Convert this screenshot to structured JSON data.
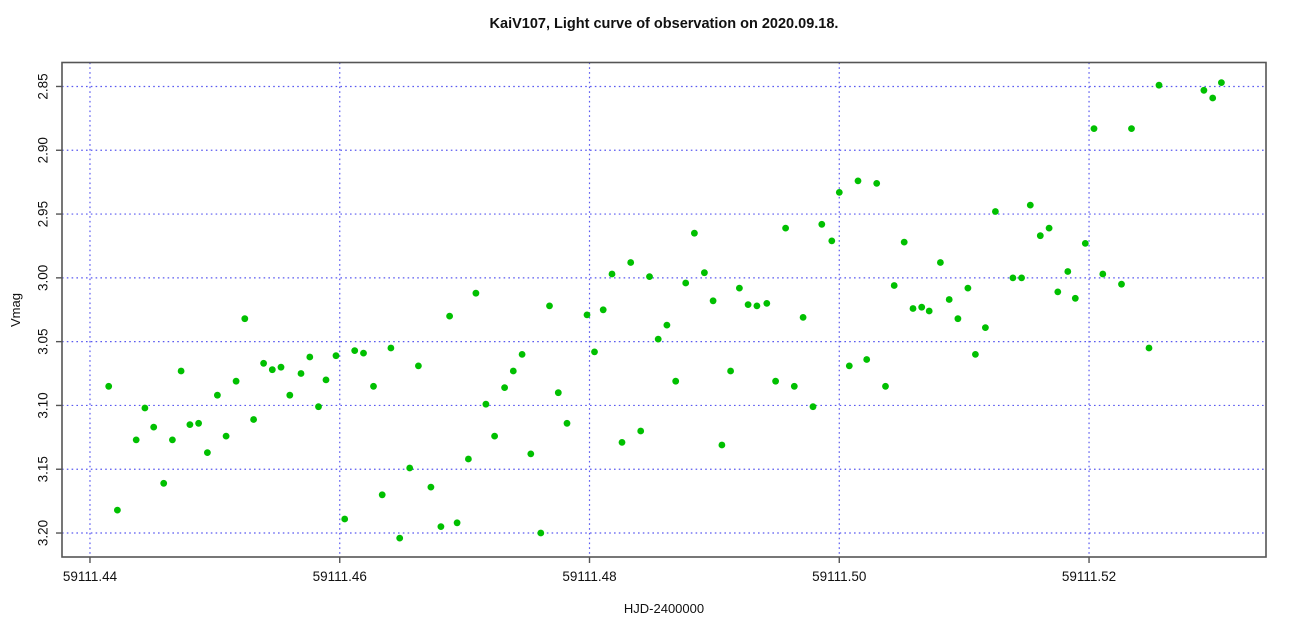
{
  "chart_data": {
    "type": "scatter",
    "title": "KaiV107, Light curve of observation on 2020.09.18.",
    "xlabel": "HJD-2400000",
    "ylabel": "Vmag",
    "x_ticks": [
      59111.44,
      59111.46,
      59111.48,
      59111.5,
      59111.52
    ],
    "x_tick_labels": [
      "59111.44",
      "59111.46",
      "59111.48",
      "59111.50",
      "59111.52"
    ],
    "y_ticks": [
      2.85,
      2.9,
      2.95,
      3.0,
      3.05,
      3.1,
      3.15,
      3.2
    ],
    "y_tick_labels": [
      "2.85",
      "2.90",
      "2.95",
      "3.00",
      "3.05",
      "3.10",
      "3.15",
      "3.20"
    ],
    "xlim": [
      59111.43776,
      59111.53417
    ],
    "ylim_top_to_bottom": [
      2.83121,
      3.21879
    ],
    "y_axis_inverted": true,
    "grid": {
      "show": true,
      "color": "#5a5af0",
      "style": "dotted"
    },
    "frame_color": "#555555",
    "text_color": "#111111",
    "legend": "none",
    "series": [
      {
        "name": "Vmag",
        "marker": "filled-circle",
        "color": "#00c000",
        "marker_radius": 3.4,
        "points": [
          [
            59111.4415,
            3.085
          ],
          [
            59111.4422,
            3.182
          ],
          [
            59111.4437,
            3.127
          ],
          [
            59111.4444,
            3.102
          ],
          [
            59111.4451,
            3.117
          ],
          [
            59111.4459,
            3.161
          ],
          [
            59111.4466,
            3.127
          ],
          [
            59111.4473,
            3.073
          ],
          [
            59111.448,
            3.115
          ],
          [
            59111.4487,
            3.114
          ],
          [
            59111.4494,
            3.137
          ],
          [
            59111.4502,
            3.092
          ],
          [
            59111.4509,
            3.124
          ],
          [
            59111.4517,
            3.081
          ],
          [
            59111.4524,
            3.032
          ],
          [
            59111.4531,
            3.111
          ],
          [
            59111.4539,
            3.067
          ],
          [
            59111.4546,
            3.072
          ],
          [
            59111.4553,
            3.07
          ],
          [
            59111.456,
            3.092
          ],
          [
            59111.4569,
            3.075
          ],
          [
            59111.4576,
            3.062
          ],
          [
            59111.4583,
            3.101
          ],
          [
            59111.4589,
            3.08
          ],
          [
            59111.4597,
            3.061
          ],
          [
            59111.4604,
            3.189
          ],
          [
            59111.4612,
            3.057
          ],
          [
            59111.4619,
            3.059
          ],
          [
            59111.4627,
            3.085
          ],
          [
            59111.4634,
            3.17
          ],
          [
            59111.4641,
            3.055
          ],
          [
            59111.4648,
            3.204
          ],
          [
            59111.4656,
            3.149
          ],
          [
            59111.4663,
            3.069
          ],
          [
            59111.4673,
            3.164
          ],
          [
            59111.4681,
            3.195
          ],
          [
            59111.4688,
            3.03
          ],
          [
            59111.4694,
            3.192
          ],
          [
            59111.4703,
            3.142
          ],
          [
            59111.4709,
            3.012
          ],
          [
            59111.4717,
            3.099
          ],
          [
            59111.4724,
            3.124
          ],
          [
            59111.4732,
            3.086
          ],
          [
            59111.4739,
            3.073
          ],
          [
            59111.4746,
            3.06
          ],
          [
            59111.4753,
            3.138
          ],
          [
            59111.4761,
            3.2
          ],
          [
            59111.4768,
            3.022
          ],
          [
            59111.4775,
            3.09
          ],
          [
            59111.4782,
            3.114
          ],
          [
            59111.4798,
            3.029
          ],
          [
            59111.4804,
            3.058
          ],
          [
            59111.4811,
            3.025
          ],
          [
            59111.4818,
            2.997
          ],
          [
            59111.4826,
            3.129
          ],
          [
            59111.4833,
            2.988
          ],
          [
            59111.4841,
            3.12
          ],
          [
            59111.4848,
            2.999
          ],
          [
            59111.4855,
            3.048
          ],
          [
            59111.4862,
            3.037
          ],
          [
            59111.4869,
            3.081
          ],
          [
            59111.4877,
            3.004
          ],
          [
            59111.4884,
            2.965
          ],
          [
            59111.4892,
            2.996
          ],
          [
            59111.4899,
            3.018
          ],
          [
            59111.4906,
            3.131
          ],
          [
            59111.4913,
            3.073
          ],
          [
            59111.492,
            3.008
          ],
          [
            59111.4927,
            3.021
          ],
          [
            59111.4934,
            3.022
          ],
          [
            59111.4942,
            3.02
          ],
          [
            59111.4949,
            3.081
          ],
          [
            59111.4957,
            2.961
          ],
          [
            59111.4964,
            3.085
          ],
          [
            59111.4971,
            3.031
          ],
          [
            59111.4979,
            3.101
          ],
          [
            59111.4986,
            2.958
          ],
          [
            59111.4994,
            2.971
          ],
          [
            59111.5,
            2.933
          ],
          [
            59111.5008,
            3.069
          ],
          [
            59111.5015,
            2.924
          ],
          [
            59111.5022,
            3.064
          ],
          [
            59111.503,
            2.926
          ],
          [
            59111.5037,
            3.085
          ],
          [
            59111.5044,
            3.006
          ],
          [
            59111.5052,
            2.972
          ],
          [
            59111.5059,
            3.024
          ],
          [
            59111.5066,
            3.023
          ],
          [
            59111.5072,
            3.026
          ],
          [
            59111.5081,
            2.988
          ],
          [
            59111.5088,
            3.017
          ],
          [
            59111.5095,
            3.032
          ],
          [
            59111.5103,
            3.008
          ],
          [
            59111.5109,
            3.06
          ],
          [
            59111.5117,
            3.039
          ],
          [
            59111.5125,
            2.948
          ],
          [
            59111.5139,
            3.0
          ],
          [
            59111.5146,
            3.0
          ],
          [
            59111.5153,
            2.943
          ],
          [
            59111.5161,
            2.967
          ],
          [
            59111.5168,
            2.961
          ],
          [
            59111.5175,
            3.011
          ],
          [
            59111.5183,
            2.995
          ],
          [
            59111.5189,
            3.016
          ],
          [
            59111.5197,
            2.973
          ],
          [
            59111.5204,
            2.883
          ],
          [
            59111.5211,
            2.997
          ],
          [
            59111.5226,
            3.005
          ],
          [
            59111.5234,
            2.883
          ],
          [
            59111.5248,
            3.055
          ],
          [
            59111.5256,
            2.849
          ],
          [
            59111.5292,
            2.853
          ],
          [
            59111.5299,
            2.859
          ],
          [
            59111.5306,
            2.847
          ]
        ]
      }
    ]
  }
}
